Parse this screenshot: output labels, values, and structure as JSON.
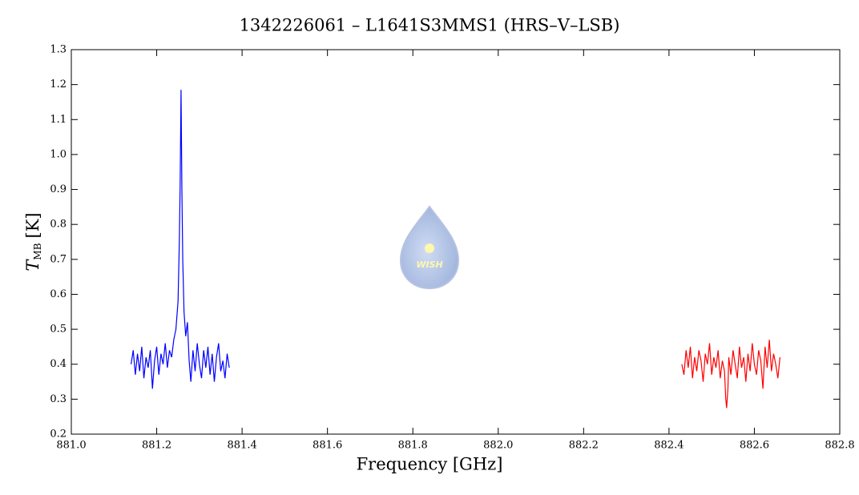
{
  "chart_data": {
    "type": "line",
    "title": "1342226061 – L1641S3MMS1 (HRS–V–LSB)",
    "xlabel": "Frequency [GHz]",
    "ylabel": "T",
    "ylabel_sub": "MB",
    "ylabel_unit": "[K]",
    "logo_text": "WISH",
    "xlim": [
      881.0,
      882.8
    ],
    "xticks": [
      {
        "value": 881.0,
        "label": "881.0"
      },
      881.2,
      881.4,
      881.6,
      881.8,
      {
        "value": 882.0,
        "label": "882.0"
      },
      882.2,
      882.4,
      882.6,
      882.8
    ],
    "ylim": [
      0.2,
      1.3
    ],
    "yticks": [
      0.2,
      0.3,
      0.4,
      0.5,
      0.6,
      0.7,
      0.8,
      0.9,
      {
        "value": 1.0,
        "label": "1.0"
      },
      1.1,
      1.2,
      1.3
    ],
    "series": [
      {
        "color": "#0000ff",
        "x": [
          881.14,
          881.145,
          881.15,
          881.155,
          881.16,
          881.165,
          881.17,
          881.175,
          881.18,
          881.185,
          881.19,
          881.195,
          881.2,
          881.205,
          881.21,
          881.215,
          881.22,
          881.225,
          881.23,
          881.235,
          881.24,
          881.245,
          881.25,
          881.253,
          881.255,
          881.257,
          881.259,
          881.261,
          881.264,
          881.268,
          881.272,
          881.276,
          881.28,
          881.285,
          881.29,
          881.295,
          881.3,
          881.305,
          881.31,
          881.315,
          881.32,
          881.325,
          881.33,
          881.335,
          881.34,
          881.345,
          881.35,
          881.355,
          881.36,
          881.365,
          881.37
        ],
        "values": [
          0.4,
          0.44,
          0.37,
          0.43,
          0.38,
          0.45,
          0.36,
          0.42,
          0.39,
          0.44,
          0.33,
          0.41,
          0.45,
          0.37,
          0.43,
          0.4,
          0.46,
          0.39,
          0.44,
          0.42,
          0.47,
          0.5,
          0.58,
          0.75,
          0.92,
          1.185,
          0.9,
          0.7,
          0.55,
          0.48,
          0.52,
          0.41,
          0.35,
          0.44,
          0.38,
          0.46,
          0.4,
          0.36,
          0.44,
          0.39,
          0.45,
          0.37,
          0.43,
          0.35,
          0.42,
          0.46,
          0.38,
          0.41,
          0.36,
          0.43,
          0.39
        ]
      },
      {
        "color": "#ff0000",
        "x": [
          882.43,
          882.435,
          882.44,
          882.445,
          882.45,
          882.455,
          882.46,
          882.465,
          882.47,
          882.475,
          882.48,
          882.485,
          882.49,
          882.495,
          882.5,
          882.505,
          882.51,
          882.515,
          882.52,
          882.525,
          882.53,
          882.533,
          882.535,
          882.538,
          882.54,
          882.545,
          882.55,
          882.555,
          882.56,
          882.565,
          882.57,
          882.575,
          882.58,
          882.585,
          882.59,
          882.595,
          882.6,
          882.605,
          882.61,
          882.615,
          882.62,
          882.625,
          882.63,
          882.635,
          882.64,
          882.645,
          882.65,
          882.655,
          882.66
        ],
        "values": [
          0.4,
          0.37,
          0.44,
          0.39,
          0.45,
          0.36,
          0.42,
          0.38,
          0.44,
          0.41,
          0.35,
          0.43,
          0.4,
          0.46,
          0.37,
          0.42,
          0.39,
          0.44,
          0.36,
          0.41,
          0.38,
          0.3,
          0.275,
          0.33,
          0.42,
          0.37,
          0.44,
          0.4,
          0.36,
          0.45,
          0.39,
          0.42,
          0.35,
          0.43,
          0.38,
          0.46,
          0.4,
          0.37,
          0.44,
          0.41,
          0.33,
          0.45,
          0.39,
          0.47,
          0.38,
          0.43,
          0.4,
          0.36,
          0.42
        ]
      }
    ]
  }
}
